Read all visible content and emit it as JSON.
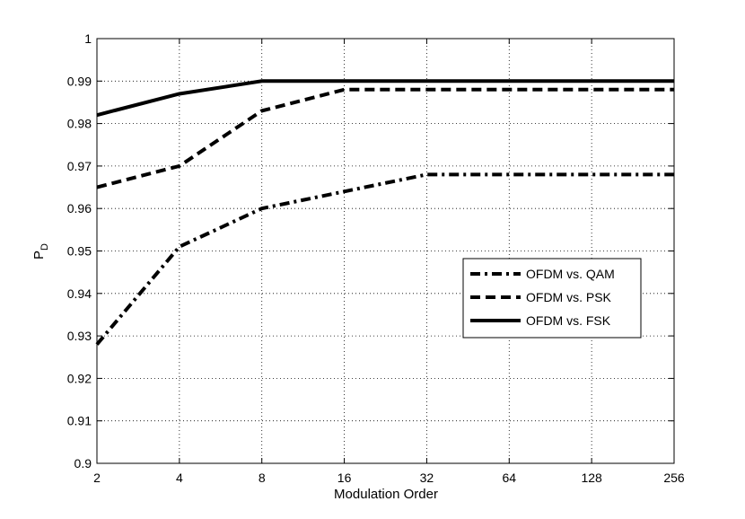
{
  "chart_data": {
    "type": "line",
    "xlabel": "Modulation Order",
    "ylabel": {
      "main": "P",
      "sub": "D"
    },
    "x_scale": "log2",
    "x_ticks": [
      2,
      4,
      8,
      16,
      32,
      64,
      128,
      256
    ],
    "x_tick_labels": [
      "2",
      "4",
      "8",
      "16",
      "32",
      "64",
      "128",
      "256"
    ],
    "xlim": [
      2,
      256
    ],
    "ylim": [
      0.9,
      1.0
    ],
    "y_ticks": [
      0.9,
      0.91,
      0.92,
      0.93,
      0.94,
      0.95,
      0.96,
      0.97,
      0.98,
      0.99,
      1.0
    ],
    "y_tick_labels": [
      "0.9",
      "0.91",
      "0.92",
      "0.93",
      "0.94",
      "0.95",
      "0.96",
      "0.97",
      "0.98",
      "0.99",
      "1"
    ],
    "grid": true,
    "legend_position": "right-middle",
    "series": [
      {
        "name": "OFDM vs. QAM",
        "style": "dashdot",
        "x": [
          2,
          4,
          8,
          16,
          32,
          64,
          128,
          256
        ],
        "values": [
          0.928,
          0.951,
          0.96,
          0.964,
          0.968,
          0.968,
          0.968,
          0.968
        ]
      },
      {
        "name": "OFDM vs. PSK",
        "style": "dashed",
        "x": [
          2,
          4,
          8,
          16,
          32,
          64,
          128,
          256
        ],
        "values": [
          0.965,
          0.97,
          0.983,
          0.988,
          0.988,
          0.988,
          0.988,
          0.988
        ]
      },
      {
        "name": "OFDM vs. FSK",
        "style": "solid",
        "x": [
          2,
          4,
          8,
          16,
          32,
          64,
          128,
          256
        ],
        "values": [
          0.982,
          0.987,
          0.99,
          0.99,
          0.99,
          0.99,
          0.99,
          0.99
        ]
      }
    ],
    "colors": {
      "line": "#000000",
      "grid": "#000000",
      "background": "#ffffff"
    }
  }
}
